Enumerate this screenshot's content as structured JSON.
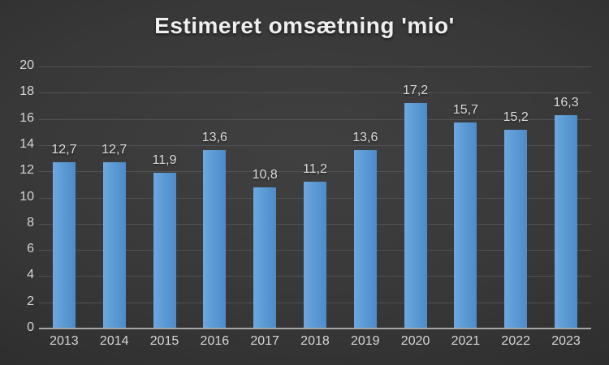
{
  "chart_data": {
    "type": "bar",
    "title": "Estimeret omsætning 'mio'",
    "categories": [
      "2013",
      "2014",
      "2015",
      "2016",
      "2017",
      "2018",
      "2019",
      "2020",
      "2021",
      "2022",
      "2023"
    ],
    "values": [
      12.7,
      12.7,
      11.9,
      13.6,
      10.8,
      11.2,
      13.6,
      17.2,
      15.7,
      15.2,
      16.3
    ],
    "value_labels": [
      "12,7",
      "12,7",
      "11,9",
      "13,6",
      "10,8",
      "11,2",
      "13,6",
      "17,2",
      "15,7",
      "15,2",
      "16,3"
    ],
    "xlabel": "",
    "ylabel": "",
    "ylim": [
      0,
      20
    ],
    "ytick_step": 2,
    "yticks": [
      0,
      2,
      4,
      6,
      8,
      10,
      12,
      14,
      16,
      18,
      20
    ],
    "grid": "horizontal",
    "legend_position": "none",
    "colors": {
      "bar_fill": "#5b9bd5",
      "bar_gradient_left": "#6fa7de",
      "bar_gradient_right": "#4d8bc9",
      "background_center": "#404040",
      "background_edge": "#222222",
      "gridline": "#525252",
      "axis_line": "#a6a6a6",
      "tick_label": "#d6d6d6",
      "data_label": "#dcdcdc",
      "title": "#efefef"
    }
  }
}
